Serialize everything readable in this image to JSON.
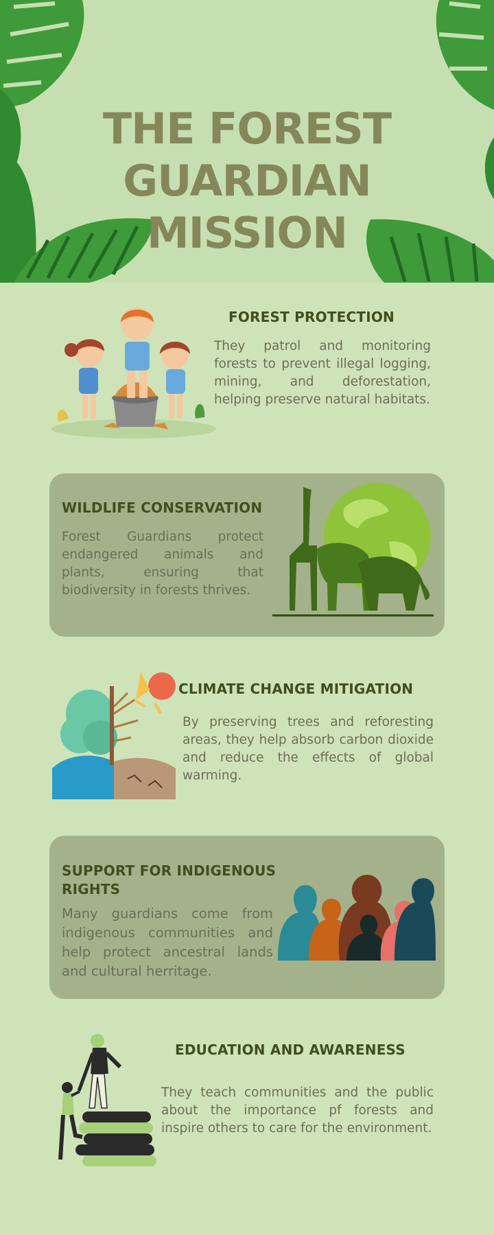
{
  "title": {
    "line1": "THE FOREST GUARDIAN",
    "line2": "MISSION"
  },
  "colors": {
    "background": "#cfe3b9",
    "header_bg": "#c6dfb0",
    "title": "#85875a",
    "card": "#a3b28b",
    "leaf": "#3f9a3a"
  },
  "sections": [
    {
      "heading": "FOREST PROTECTION",
      "body": "They patrol and monitoring forests to prevent illegal logging, mining, and deforestation, helping preserve natural habitats.",
      "illustration": "children-planting-illustration"
    },
    {
      "heading": "WILDLIFE CONSERVATION",
      "body": "Forest Guardians protect endangered animals and plants, ensuring that biodiversity in forests thrives.",
      "illustration": "animals-globe-illustration"
    },
    {
      "heading": "CLIMATE CHANGE MITIGATION",
      "body": "By preserving trees and reforesting areas, they help absorb carbon dioxide and reduce the effects of global warming.",
      "illustration": "climate-tree-illustration"
    },
    {
      "heading_line1": "SUPPORT FOR INDIGENOUS",
      "heading_line2": "RIGHTS",
      "body": "Many guardians come from indigenous communities and help protect ancestral lands and cultural herritage.",
      "illustration": "people-silhouettes-illustration"
    },
    {
      "heading": "EDUCATION AND AWARENESS",
      "body": "They teach communities and the public about the importance pf forests and inspire others to care for the environment.",
      "illustration": "books-climbing-illustration"
    }
  ]
}
